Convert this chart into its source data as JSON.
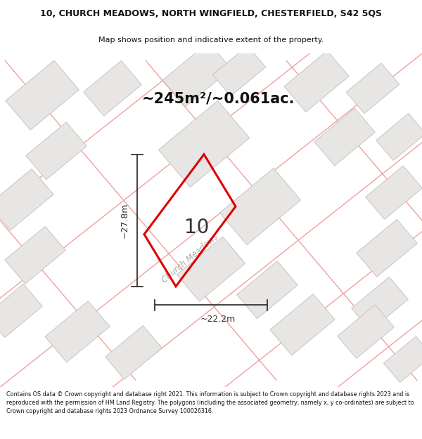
{
  "title_line1": "10, CHURCH MEADOWS, NORTH WINGFIELD, CHESTERFIELD, S42 5QS",
  "title_line2": "Map shows position and indicative extent of the property.",
  "area_text": "~245m²/~0.061ac.",
  "plot_number": "10",
  "dim_width": "~22.2m",
  "dim_height": "~27.8m",
  "street_label": "Church Meadows",
  "footer_text": "Contains OS data © Crown copyright and database right 2021. This information is subject to Crown copyright and database rights 2023 and is reproduced with the permission of HM Land Registry. The polygons (including the associated geometry, namely x, y co-ordinates) are subject to Crown copyright and database rights 2023 Ordnance Survey 100026316.",
  "map_bg": "#ffffff",
  "plot_fill": "none",
  "plot_edge": "#dd0000",
  "road_line_color": "#f0a0a0",
  "building_fill": "#e8e6e4",
  "building_edge": "#c8c4c0",
  "dim_line_color": "#333333",
  "text_color": "#111111",
  "street_color": "#aaaaaa",
  "area_fontsize": 16,
  "title_fontsize": 9,
  "subtitle_fontsize": 8
}
